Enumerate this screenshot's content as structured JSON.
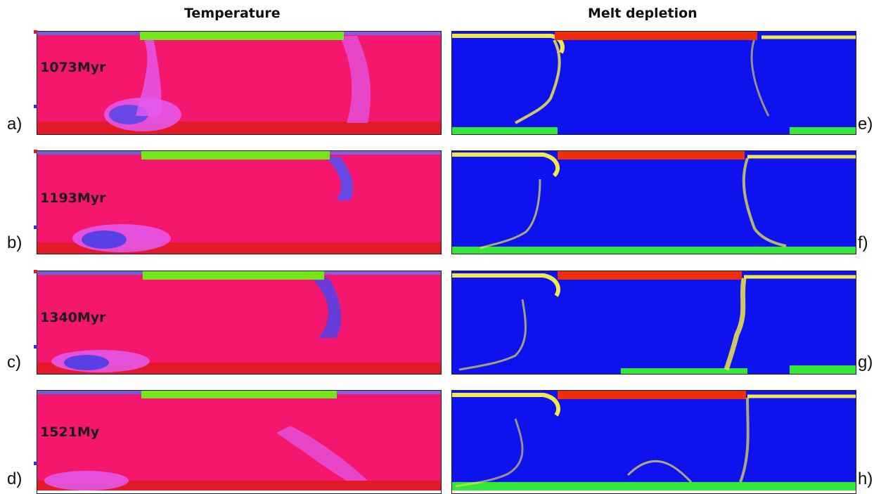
{
  "titles": {
    "temperature": "Temperature",
    "melt": "Melt depletion"
  },
  "colors": {
    "temp_bg": "#f5176e",
    "temp_plume": "#e35bf0",
    "temp_cold": "#4a35e0",
    "temp_bottom": "#e21a2a",
    "continent_green": "#76e51b",
    "melt_bg": "#0d12ee",
    "melt_red": "#ee2d0c",
    "melt_yellow": "#f1e84a",
    "melt_green": "#32e83a"
  },
  "temperature_panels": [
    {
      "letter": "a)",
      "time": "1073Myr"
    },
    {
      "letter": "b)",
      "time": "1193Myr"
    },
    {
      "letter": "c)",
      "time": "1340Myr"
    },
    {
      "letter": "d)",
      "time": "1521My"
    }
  ],
  "melt_panels": [
    {
      "letter": "e)"
    },
    {
      "letter": "f)"
    },
    {
      "letter": "g)"
    },
    {
      "letter": "h)"
    }
  ]
}
